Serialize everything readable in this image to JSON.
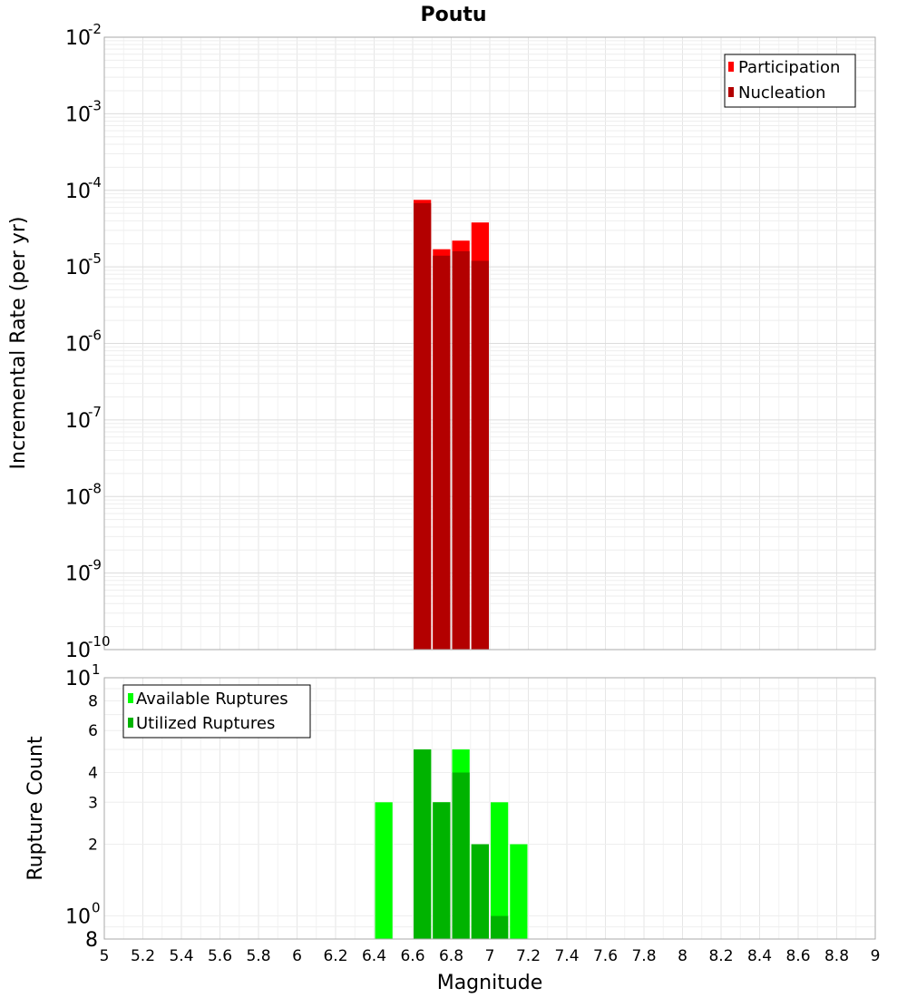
{
  "chart_data": [
    {
      "type": "bar",
      "title": "Poutu",
      "ylabel": "Incremental Rate (per yr)",
      "xlabel": "",
      "y_scale": "log",
      "ylim": [
        1e-10,
        0.01
      ],
      "xlim": [
        5,
        9
      ],
      "grid": true,
      "legend_position": "top-right",
      "y_ticks": [
        {
          "base": "10",
          "exp": "-10"
        },
        {
          "base": "10",
          "exp": "-9"
        },
        {
          "base": "10",
          "exp": "-8"
        },
        {
          "base": "10",
          "exp": "-7"
        },
        {
          "base": "10",
          "exp": "-6"
        },
        {
          "base": "10",
          "exp": "-5"
        },
        {
          "base": "10",
          "exp": "-4"
        },
        {
          "base": "10",
          "exp": "-3"
        },
        {
          "base": "10",
          "exp": "-2"
        }
      ],
      "series": [
        {
          "name": "Participation",
          "color": "#ff0000",
          "x": [
            6.65,
            6.75,
            6.85,
            6.95
          ],
          "values": [
            7.5e-05,
            1.7e-05,
            2.2e-05,
            3.8e-05
          ]
        },
        {
          "name": "Nucleation",
          "color": "#b30000",
          "x": [
            6.65,
            6.75,
            6.85,
            6.95
          ],
          "values": [
            6.8e-05,
            1.4e-05,
            1.6e-05,
            1.2e-05
          ]
        }
      ]
    },
    {
      "type": "bar",
      "ylabel": "Rupture Count",
      "xlabel": "Magnitude",
      "y_scale": "log",
      "ylim": [
        0.8,
        10
      ],
      "xlim": [
        5,
        9
      ],
      "grid": true,
      "legend_position": "top-left",
      "y_major_ticks": [
        {
          "value": 1,
          "base": "10",
          "exp": "0"
        },
        {
          "value": 10,
          "base": "10",
          "exp": "1"
        }
      ],
      "y_minor_ticks": [
        {
          "value": 0.8,
          "label": "8"
        },
        {
          "value": 2,
          "label": "2"
        },
        {
          "value": 3,
          "label": "3"
        },
        {
          "value": 4,
          "label": "4"
        },
        {
          "value": 6,
          "label": "6"
        },
        {
          "value": 8,
          "label": "8"
        }
      ],
      "x_ticks": [
        "5",
        "5.2",
        "5.4",
        "5.6",
        "5.8",
        "6",
        "6.2",
        "6.4",
        "6.6",
        "6.8",
        "7",
        "7.2",
        "7.4",
        "7.6",
        "7.8",
        "8",
        "8.2",
        "8.4",
        "8.6",
        "8.8",
        "9"
      ],
      "series": [
        {
          "name": "Available Ruptures",
          "color": "#00ff00",
          "x": [
            6.45,
            6.65,
            6.75,
            6.85,
            6.95,
            7.05,
            7.15
          ],
          "values": [
            3,
            5,
            3,
            5,
            2,
            3,
            2
          ]
        },
        {
          "name": "Utilized Ruptures",
          "color": "#00b300",
          "x": [
            6.65,
            6.75,
            6.85,
            6.95,
            7.05
          ],
          "values": [
            5,
            3,
            4,
            2,
            1
          ]
        }
      ]
    }
  ]
}
